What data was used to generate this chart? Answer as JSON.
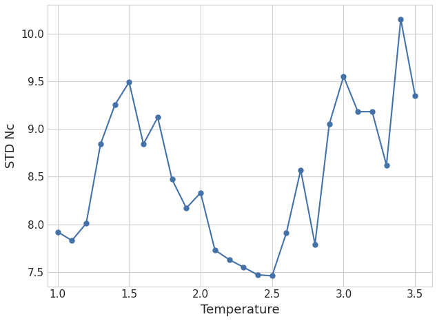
{
  "x": [
    1.0,
    1.1,
    1.2,
    1.3,
    1.4,
    1.5,
    1.6,
    1.7,
    1.8,
    1.9,
    2.0,
    2.1,
    2.2,
    2.3,
    2.4,
    2.5,
    2.6,
    2.7,
    2.8,
    2.9,
    3.0,
    3.1,
    3.2,
    3.3,
    3.4,
    3.5
  ],
  "y": [
    7.92,
    7.83,
    8.01,
    8.84,
    9.25,
    9.49,
    8.84,
    9.12,
    8.47,
    8.17,
    8.33,
    7.73,
    7.63,
    7.55,
    7.47,
    7.46,
    7.91,
    8.57,
    7.79,
    9.05,
    9.55,
    9.18,
    9.18,
    8.62,
    10.15,
    9.35
  ],
  "line_color": "#4472a8",
  "marker": "o",
  "markersize": 5,
  "linewidth": 1.5,
  "xlabel": "Temperature",
  "ylabel": "STD Nc",
  "xlim": [
    0.93,
    3.62
  ],
  "ylim": [
    7.35,
    10.3
  ],
  "xticks": [
    1.0,
    1.5,
    2.0,
    2.5,
    3.0,
    3.5
  ],
  "yticks": [
    7.5,
    8.0,
    8.5,
    9.0,
    9.5,
    10.0
  ],
  "grid_color": "#d0d0d0",
  "background_color": "#ffffff",
  "xlabel_fontsize": 13,
  "ylabel_fontsize": 13,
  "tick_fontsize": 11
}
